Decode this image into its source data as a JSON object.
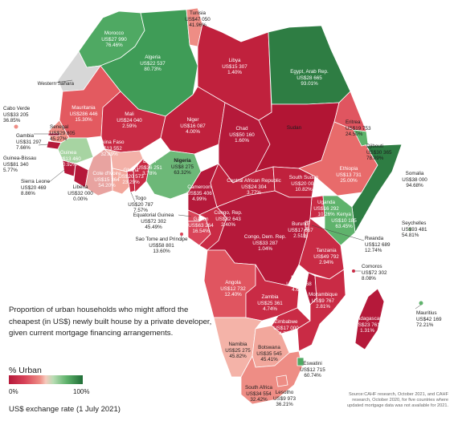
{
  "colors": {
    "deep_red": "#b5193a",
    "red": "#c92b45",
    "mid_red": "#d94459",
    "salmon": "#ee8d85",
    "light_pink": "#f6c9bd",
    "light_green": "#9fd19e",
    "green": "#5fb36c",
    "dark_green": "#2e7d43",
    "no_data": "#d7d7d7"
  },
  "caption": "Proportion of urban households who might afford the cheapest (in US$) newly built house by a private developer, given current mortgage financing arrangements.",
  "legend": {
    "title": "% Urban",
    "min_label": "0%",
    "max_label": "100%"
  },
  "exchange_note": "US$ exchange rate (1 July 2021)",
  "source_note": "Source:CAHF research, October 2021, and CAHF research, October 2020, for five countries where updated mortgage data was not available for 2021.",
  "countries": [
    {
      "name": "Tunisia",
      "price": "US$47 050",
      "pct": "41.96%"
    },
    {
      "name": "Morocco",
      "price": "US$27 990",
      "pct": "76.46%"
    },
    {
      "name": "Algeria",
      "price": "US$22 537",
      "pct": "80.73%"
    },
    {
      "name": "Libya",
      "price": "US$15 307",
      "pct": "1.40%"
    },
    {
      "name": "Egypt, Arab Rep.",
      "price": "US$28 665",
      "pct": "93.01%"
    },
    {
      "name": "Western Sahara",
      "price": "",
      "pct": ""
    },
    {
      "name": "Mauritania",
      "price": "US$286 446",
      "pct": "15.30%"
    },
    {
      "name": "Mali",
      "price": "US$24 040",
      "pct": "2.59%"
    },
    {
      "name": "Niger",
      "price": "US$16 087",
      "pct": "4.00%"
    },
    {
      "name": "Chad",
      "price": "US$50 160",
      "pct": "1.60%"
    },
    {
      "name": "Sudan",
      "price": "",
      "pct": ""
    },
    {
      "name": "Eritrea",
      "price": "US$19 753",
      "pct": "24.50%"
    },
    {
      "name": "Cabo Verde",
      "price": "US$33 205",
      "pct": "36.85%"
    },
    {
      "name": "Senegal",
      "price": "US$29 805",
      "pct": "45.27%"
    },
    {
      "name": "Gambia",
      "price": "US$31 297",
      "pct": "7.66%"
    },
    {
      "name": "Guinea-Bissau",
      "price": "US$81 340",
      "pct": "5.77%"
    },
    {
      "name": "Guinea",
      "price": "US$13 460",
      "pct": "60.92%"
    },
    {
      "name": "Burkina Faso",
      "price": "US$13 552",
      "pct": "32.89%"
    },
    {
      "name": "Benin",
      "price": "US$36 251",
      "pct": "3.78%"
    },
    {
      "name": "Nigeria",
      "price": "US$8 275",
      "pct": "63.32%"
    },
    {
      "name": "Djibouti",
      "price": "US$30 365",
      "pct": "78.09%"
    },
    {
      "name": "Ethiopia",
      "price": "US$13 731",
      "pct": "25.00%"
    },
    {
      "name": "Somalia",
      "price": "US$38 000",
      "pct": "94.68%"
    },
    {
      "name": "Sierra Leone",
      "price": "US$20 469",
      "pct": "8.86%"
    },
    {
      "name": "Cote d'Ivoire",
      "price": "US$15 364",
      "pct": "54.20%"
    },
    {
      "name": "Ghana",
      "price": "US$20 573",
      "pct": "23.29%"
    },
    {
      "name": "Liberia",
      "price": "US$32 000",
      "pct": "0.00%"
    },
    {
      "name": "Togo",
      "price": "US$20 787",
      "pct": "7.57%"
    },
    {
      "name": "Cameroon",
      "price": "US$35 406",
      "pct": "4.99%"
    },
    {
      "name": "Central African Republic",
      "price": "US$24 304",
      "pct": "3.77%"
    },
    {
      "name": "South Sudan",
      "price": "US$20 000",
      "pct": "10.82%"
    },
    {
      "name": "Uganda",
      "price": "US$16 292",
      "pct": "10.26%"
    },
    {
      "name": "Kenya",
      "price": "US$10 185",
      "pct": "63.45%"
    },
    {
      "name": "Equatorial Guinea",
      "price": "US$72 302",
      "pct": "45.49%"
    },
    {
      "name": "Gabon",
      "price": "US$63 264",
      "pct": "16.54%"
    },
    {
      "name": "Congo, Rep.",
      "price": "US$32 643",
      "pct": "2.40%"
    },
    {
      "name": "Congo, Dem. Rep.",
      "price": "US$33 287",
      "pct": "1.04%"
    },
    {
      "name": "Burundi",
      "price": "US$17 667",
      "pct": "2.51%"
    },
    {
      "name": "Rwanda",
      "price": "US$12 689",
      "pct": "12.74%"
    },
    {
      "name": "Seychelles",
      "price": "US$93 481",
      "pct": "54.81%"
    },
    {
      "name": "Sao Tome and Principe",
      "price": "US$58 801",
      "pct": "13.60%"
    },
    {
      "name": "Tanzania",
      "price": "US$49 792",
      "pct": "2.94%"
    },
    {
      "name": "Comoros",
      "price": "US$72 302",
      "pct": "8.08%"
    },
    {
      "name": "Angola",
      "price": "US$12 732",
      "pct": "12.40%"
    },
    {
      "name": "Malawi",
      "price": "US$12 468",
      "pct": "4.67%"
    },
    {
      "name": "Zambia",
      "price": "US$25 361",
      "pct": "4.74%"
    },
    {
      "name": "Mozambique",
      "price": "US$9 767",
      "pct": "2.81%"
    },
    {
      "name": "Zimbabwe",
      "price": "US$17 000",
      "pct": "4.74%"
    },
    {
      "name": "Madagascar",
      "price": "US$23 761",
      "pct": "1.31%"
    },
    {
      "name": "Mauritius",
      "price": "US$42 169",
      "pct": "72.21%"
    },
    {
      "name": "Namibia",
      "price": "US$25 275",
      "pct": "45.82%"
    },
    {
      "name": "Botswana",
      "price": "US$35 545",
      "pct": "45.41%"
    },
    {
      "name": "Eswatini",
      "price": "US$12 715",
      "pct": "60.74%"
    },
    {
      "name": "South Africa",
      "price": "US$34 554",
      "pct": "32.42%"
    },
    {
      "name": "Lesotho",
      "price": "US$9 973",
      "pct": "36.21%"
    }
  ]
}
